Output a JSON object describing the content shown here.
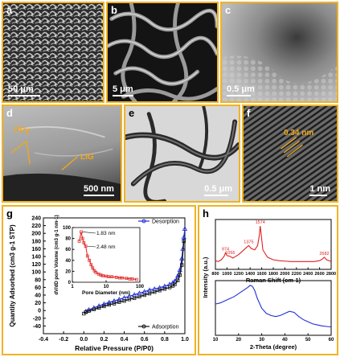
{
  "panels": {
    "a": {
      "label": "a",
      "scale": "50 μm"
    },
    "b": {
      "label": "b",
      "scale": "5 μm"
    },
    "c": {
      "label": "c",
      "scale": "0.5 μm"
    },
    "d": {
      "label": "d",
      "scale": "500 nm",
      "ann_ppy": "PPy",
      "ann_lig": "LIG"
    },
    "e": {
      "label": "e",
      "scale": "0.5 μm"
    },
    "f": {
      "label": "f",
      "scale": "1 nm",
      "ann_spacing": "0.34 nm"
    },
    "g": {
      "label": "g"
    },
    "h": {
      "label": "h"
    }
  },
  "chart_data": [
    {
      "id": "g-main",
      "type": "line",
      "xlabel": "Relative Pressure (P/P0)",
      "ylabel": "Quantity Adsorbed (cm3 g-1 STP)",
      "xlim": [
        -0.4,
        1.0
      ],
      "ylim": [
        -60,
        240
      ],
      "xticks": [
        "-0.4",
        "-0.2",
        "0.0",
        "0.2",
        "0.4",
        "0.6",
        "0.8",
        "1.0"
      ],
      "yticks": [
        "-40",
        "-20",
        "0",
        "20",
        "40",
        "60",
        "80",
        "100",
        "120",
        "140",
        "160",
        "180",
        "200",
        "220",
        "240"
      ],
      "legend": [
        "Desorption",
        "Adsorption"
      ],
      "series": [
        {
          "name": "Desorption",
          "color": "#1f2fd6",
          "x": [
            0.02,
            0.05,
            0.1,
            0.15,
            0.2,
            0.25,
            0.3,
            0.35,
            0.4,
            0.45,
            0.5,
            0.55,
            0.6,
            0.65,
            0.7,
            0.75,
            0.8,
            0.85,
            0.88,
            0.9,
            0.93,
            0.95,
            0.97,
            0.98,
            0.99,
            1.0
          ],
          "y": [
            -2,
            2,
            7,
            12,
            17,
            21,
            25,
            29,
            33,
            37,
            41,
            45,
            49,
            53,
            56,
            59,
            63,
            68,
            72,
            76,
            90,
            105,
            135,
            160,
            190,
            212
          ]
        },
        {
          "name": "Adsorption",
          "color": "#111111",
          "x": [
            0.0,
            0.02,
            0.05,
            0.1,
            0.15,
            0.2,
            0.25,
            0.3,
            0.35,
            0.4,
            0.45,
            0.5,
            0.55,
            0.6,
            0.65,
            0.7,
            0.75,
            0.8,
            0.85,
            0.88,
            0.9,
            0.93,
            0.95,
            0.97,
            0.99
          ],
          "y": [
            -8,
            -4,
            -1,
            3,
            7,
            11,
            15,
            18,
            22,
            25,
            29,
            32,
            36,
            40,
            44,
            48,
            52,
            56,
            60,
            64,
            68,
            78,
            92,
            118,
            180
          ]
        }
      ]
    },
    {
      "id": "g-inset",
      "type": "line",
      "xlabel": "Pore Diameter (nm)",
      "ylabel": "dV/dD pore Volume (cm3 g-1 nm-1)",
      "xscale": "log",
      "xlim": [
        1,
        100
      ],
      "ylim": [
        0,
        100
      ],
      "xticks": [
        "1",
        "10",
        "100"
      ],
      "yticks": [
        "0",
        "20",
        "40",
        "60",
        "80",
        "100"
      ],
      "annotations": [
        "1.83 nm",
        "2.48 nm"
      ],
      "series": [
        {
          "name": "",
          "color": "#e02020",
          "x": [
            1.6,
            1.83,
            2.0,
            2.2,
            2.48,
            2.8,
            3.2,
            3.6,
            4.0,
            4.5,
            5,
            6,
            7,
            8,
            10,
            12,
            15,
            20,
            25,
            30,
            40,
            50,
            60,
            80
          ],
          "y": [
            75,
            92,
            80,
            72,
            66,
            48,
            40,
            32,
            26,
            21,
            18,
            15,
            13,
            12,
            11,
            10,
            10,
            9,
            8,
            8,
            7,
            6,
            6,
            5
          ]
        }
      ]
    },
    {
      "id": "h-raman",
      "type": "line",
      "xlabel": "Raman Shift (cm-1)",
      "ylabel": "Intensity (a.u.)",
      "xlim": [
        800,
        2800
      ],
      "xticks": [
        "800",
        "1000",
        "1200",
        "1400",
        "1600",
        "1800",
        "2000",
        "2200",
        "2400",
        "2600",
        "2800"
      ],
      "peak_labels": [
        {
          "x": 974,
          "label": "974"
        },
        {
          "x": 1055,
          "label": "1055"
        },
        {
          "x": 1375,
          "label": "1375"
        },
        {
          "x": 1574,
          "label": "1574"
        },
        {
          "x": 2682,
          "label": "2682"
        }
      ],
      "series": [
        {
          "name": "",
          "color": "#e02020",
          "x": [
            800,
            850,
            900,
            950,
            974,
            1000,
            1055,
            1100,
            1150,
            1200,
            1250,
            1300,
            1350,
            1375,
            1420,
            1480,
            1530,
            1560,
            1574,
            1590,
            1620,
            1700,
            1800,
            1900,
            2000,
            2100,
            2200,
            2300,
            2400,
            2500,
            2600,
            2650,
            2682,
            2720,
            2800
          ],
          "y": [
            0.2,
            0.18,
            0.22,
            0.3,
            0.38,
            0.32,
            0.3,
            0.26,
            0.3,
            0.34,
            0.4,
            0.46,
            0.52,
            0.55,
            0.48,
            0.45,
            0.55,
            0.8,
            1.0,
            0.82,
            0.45,
            0.28,
            0.22,
            0.2,
            0.19,
            0.18,
            0.18,
            0.18,
            0.18,
            0.18,
            0.2,
            0.24,
            0.28,
            0.22,
            0.18
          ]
        }
      ]
    },
    {
      "id": "h-xrd",
      "type": "line",
      "xlabel": "2-Theta (degree)",
      "ylabel": "Intensity (a.u.)",
      "xlim": [
        10,
        60
      ],
      "xticks": [
        "10",
        "20",
        "30",
        "40",
        "50",
        "60"
      ],
      "series": [
        {
          "name": "",
          "color": "#1f2fd6",
          "x": [
            10,
            12,
            14,
            16,
            18,
            20,
            22,
            24,
            25,
            26,
            27,
            28,
            30,
            32,
            34,
            36,
            38,
            40,
            42,
            44,
            46,
            48,
            50,
            52,
            54,
            56,
            58,
            60
          ],
          "y": [
            0.6,
            0.62,
            0.66,
            0.7,
            0.74,
            0.8,
            0.86,
            0.92,
            0.96,
            0.94,
            0.86,
            0.72,
            0.52,
            0.42,
            0.38,
            0.36,
            0.38,
            0.42,
            0.46,
            0.44,
            0.36,
            0.3,
            0.26,
            0.22,
            0.2,
            0.18,
            0.17,
            0.16
          ]
        }
      ]
    }
  ]
}
